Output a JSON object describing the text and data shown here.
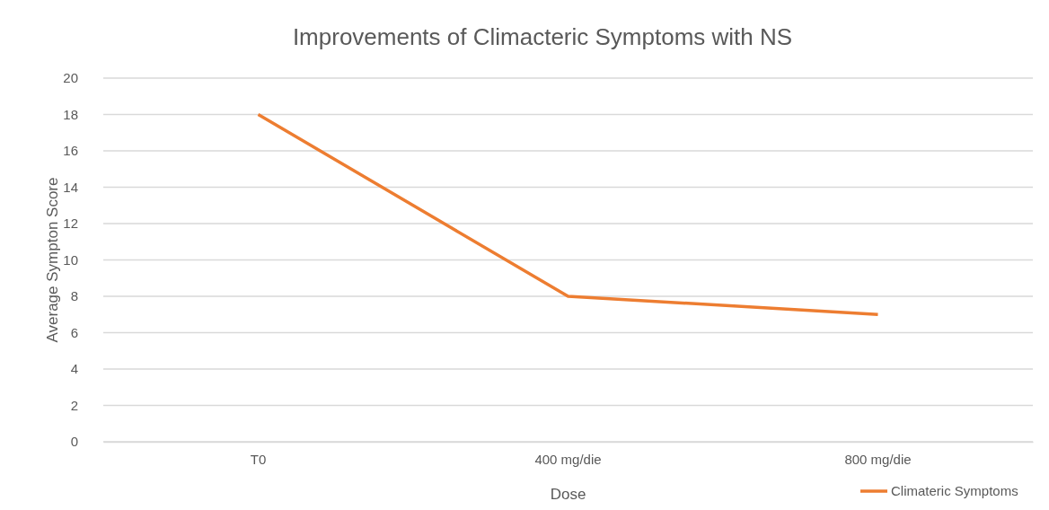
{
  "chart_data": {
    "type": "line",
    "title": "Improvements of Climacteric Symptoms with NS",
    "xlabel": "Dose",
    "ylabel": "Average Sympton Score",
    "categories": [
      "T0",
      "400 mg/die",
      "800 mg/die"
    ],
    "series": [
      {
        "name": "Climateric Symptoms",
        "color": "#ed7d31",
        "values": [
          18,
          8,
          7
        ]
      }
    ],
    "ylim": [
      0,
      20
    ],
    "yticks": [
      0,
      2,
      4,
      6,
      8,
      10,
      12,
      14,
      16,
      18,
      20
    ],
    "grid": "y",
    "legend": "bottom right",
    "marker": "none",
    "line_style": "solid"
  }
}
